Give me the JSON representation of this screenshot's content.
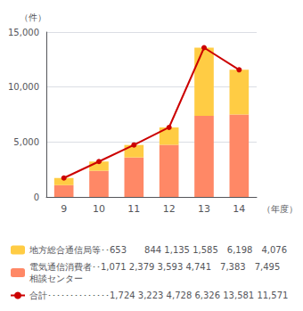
{
  "chart_data": {
    "type": "bar",
    "stacked": true,
    "categories": [
      "9",
      "10",
      "11",
      "12",
      "13",
      "14"
    ],
    "series": [
      {
        "name": "電気通信消費者･･1,071 2,379 3,593 4,741　7,383　7,495\n相談センター",
        "type": "bar",
        "color": "#FF8866",
        "values": [
          1071,
          2379,
          3593,
          4741,
          7383,
          7495
        ]
      },
      {
        "name": "地方総合通信局等･･653　　844 1,135 1,585　6,198　4,076",
        "type": "bar",
        "color": "#FFCC44",
        "values": [
          653,
          844,
          1135,
          1585,
          6198,
          4076
        ]
      },
      {
        "name": "合計･･････････････1,724 3,223 4,728 6,326 13,581 11,571",
        "type": "line",
        "color": "#CC0000",
        "marker": "circle",
        "line_style": "solid",
        "values": [
          1724,
          3223,
          4728,
          6326,
          13581,
          11571
        ]
      }
    ],
    "ylabel": "（件）",
    "xlabel": "（年度）",
    "ylim": [
      0,
      15000
    ],
    "yticks": [
      0,
      {
        "value": 5000,
        "label": "5,000"
      },
      {
        "value": 10000,
        "label": "10,000"
      },
      {
        "value": 15000,
        "label": "15,000"
      }
    ],
    "grid": true,
    "legend": "bottom"
  }
}
